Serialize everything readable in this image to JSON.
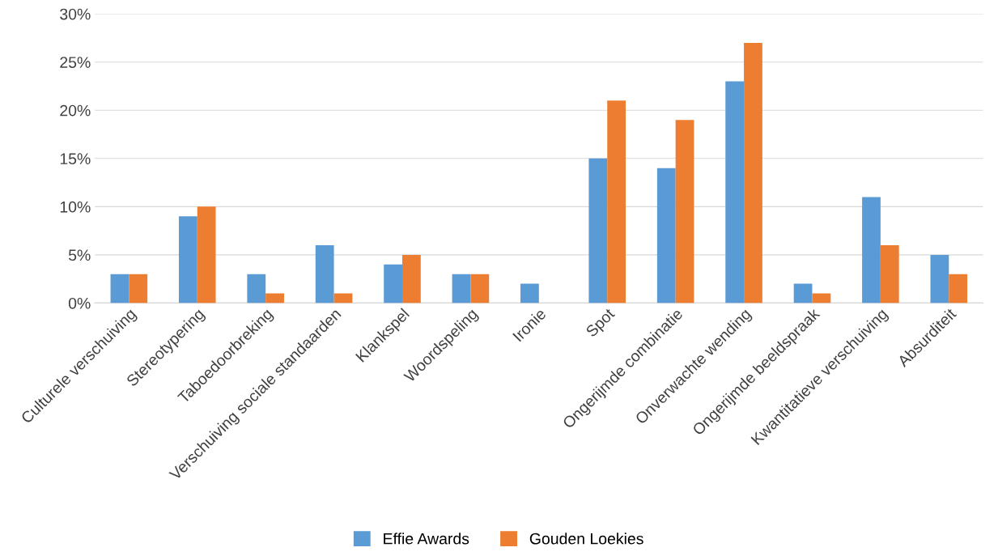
{
  "chart_data": {
    "type": "bar",
    "categories": [
      "Culturele verschuiving",
      "Stereotypering",
      "Taboedoorbreking",
      "Verschuiving sociale standaarden",
      "Klankspel",
      "Woordspeling",
      "Ironie",
      "Spot",
      "Ongerijmde combinatie",
      "Onverwachte wending",
      "Ongerijmde beeldspraak",
      "Kwantitatieve verschuiving",
      "Absurditeit"
    ],
    "series": [
      {
        "name": "Effie Awards",
        "color": "#5b9bd5",
        "values": [
          3,
          9,
          3,
          6,
          4,
          3,
          2,
          15,
          14,
          23,
          2,
          11,
          5
        ]
      },
      {
        "name": "Gouden Loekies",
        "color": "#ed7d31",
        "values": [
          3,
          10,
          1,
          1,
          5,
          3,
          0,
          21,
          19,
          27,
          1,
          6,
          3
        ]
      }
    ],
    "ylim": [
      0,
      30
    ],
    "yticks": [
      {
        "value": 0,
        "label": "0%"
      },
      {
        "value": 5,
        "label": "5%"
      },
      {
        "value": 10,
        "label": "10%"
      },
      {
        "value": 15,
        "label": "15%"
      },
      {
        "value": 20,
        "label": "20%"
      },
      {
        "value": 25,
        "label": "25%"
      },
      {
        "value": 30,
        "label": "30%"
      }
    ],
    "grid": "y",
    "legend": "bottom"
  }
}
